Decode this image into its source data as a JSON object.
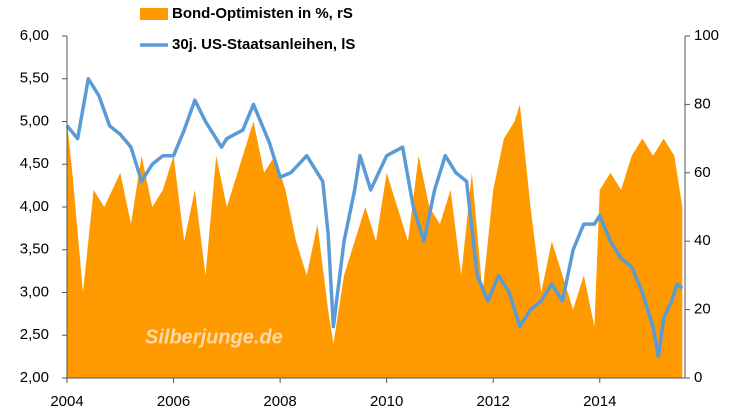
{
  "chart_data": {
    "type": "combo",
    "annotation": "Silberjunge.de",
    "xlim": [
      2004,
      2015.6
    ],
    "xticks": [
      2004,
      2006,
      2008,
      2010,
      2012,
      2014
    ],
    "ylim": [
      2,
      6
    ],
    "yticks": [
      {
        "value": 2,
        "label": "2,00"
      },
      {
        "value": 2.5,
        "label": "2,50"
      },
      {
        "value": 3,
        "label": "3,00"
      },
      {
        "value": 3.5,
        "label": "3,50"
      },
      {
        "value": 4,
        "label": "4,00"
      },
      {
        "value": 4.5,
        "label": "4,50"
      },
      {
        "value": 5,
        "label": "5,00"
      },
      {
        "value": 5.5,
        "label": "5,50"
      },
      {
        "value": 6,
        "label": "6,00"
      }
    ],
    "y2lim": [
      0,
      100
    ],
    "y2ticks": [
      0,
      20,
      40,
      60,
      80,
      100
    ],
    "series": [
      {
        "name": "Bond-Optimisten in %, rS",
        "type": "area",
        "axis": "y2",
        "color": "#ff9900",
        "x": [
          2004.0,
          2004.1,
          2004.3,
          2004.5,
          2004.7,
          2005.0,
          2005.2,
          2005.4,
          2005.6,
          2005.8,
          2006.0,
          2006.2,
          2006.4,
          2006.6,
          2006.8,
          2007.0,
          2007.3,
          2007.5,
          2007.7,
          2007.9,
          2008.1,
          2008.3,
          2008.5,
          2008.7,
          2008.9,
          2009.0,
          2009.2,
          2009.4,
          2009.6,
          2009.8,
          2010.0,
          2010.2,
          2010.4,
          2010.6,
          2010.8,
          2011.0,
          2011.2,
          2011.4,
          2011.6,
          2011.8,
          2012.0,
          2012.2,
          2012.4,
          2012.5,
          2012.7,
          2012.9,
          2013.1,
          2013.3,
          2013.5,
          2013.7,
          2013.9,
          2014.0,
          2014.2,
          2014.4,
          2014.6,
          2014.8,
          2015.0,
          2015.2,
          2015.4,
          2015.55
        ],
        "values": [
          75,
          60,
          25,
          55,
          50,
          60,
          45,
          65,
          50,
          55,
          65,
          40,
          55,
          30,
          65,
          50,
          65,
          75,
          60,
          65,
          55,
          40,
          30,
          45,
          20,
          10,
          30,
          40,
          50,
          40,
          60,
          50,
          40,
          65,
          50,
          45,
          55,
          30,
          60,
          25,
          55,
          70,
          75,
          80,
          50,
          25,
          40,
          30,
          20,
          30,
          15,
          55,
          60,
          55,
          65,
          70,
          65,
          70,
          65,
          50
        ]
      },
      {
        "name": "30j. US-Staatsanleihen, lS",
        "type": "line",
        "axis": "y",
        "color": "#5b9bd5",
        "x": [
          2004.0,
          2004.2,
          2004.4,
          2004.6,
          2004.8,
          2005.0,
          2005.2,
          2005.4,
          2005.6,
          2005.8,
          2006.0,
          2006.2,
          2006.4,
          2006.6,
          2006.9,
          2007.0,
          2007.3,
          2007.5,
          2007.8,
          2008.0,
          2008.2,
          2008.5,
          2008.8,
          2008.9,
          2009.0,
          2009.2,
          2009.4,
          2009.5,
          2009.7,
          2010.0,
          2010.3,
          2010.5,
          2010.7,
          2010.9,
          2011.1,
          2011.3,
          2011.5,
          2011.7,
          2011.9,
          2012.1,
          2012.3,
          2012.5,
          2012.7,
          2012.9,
          2013.1,
          2013.3,
          2013.5,
          2013.7,
          2013.9,
          2014.0,
          2014.2,
          2014.4,
          2014.6,
          2014.8,
          2015.0,
          2015.1,
          2015.2,
          2015.35,
          2015.45,
          2015.55
        ],
        "values": [
          4.95,
          4.8,
          5.5,
          5.3,
          4.95,
          4.85,
          4.7,
          4.3,
          4.5,
          4.6,
          4.6,
          4.9,
          5.25,
          5.0,
          4.7,
          4.8,
          4.9,
          5.2,
          4.75,
          4.35,
          4.4,
          4.6,
          4.3,
          3.7,
          2.6,
          3.6,
          4.2,
          4.6,
          4.2,
          4.6,
          4.7,
          4.0,
          3.6,
          4.2,
          4.6,
          4.4,
          4.3,
          3.2,
          2.9,
          3.2,
          3.0,
          2.6,
          2.8,
          2.9,
          3.1,
          2.9,
          3.5,
          3.8,
          3.8,
          3.9,
          3.6,
          3.4,
          3.3,
          3.0,
          2.6,
          2.25,
          2.7,
          2.9,
          3.1,
          3.05
        ]
      }
    ]
  }
}
